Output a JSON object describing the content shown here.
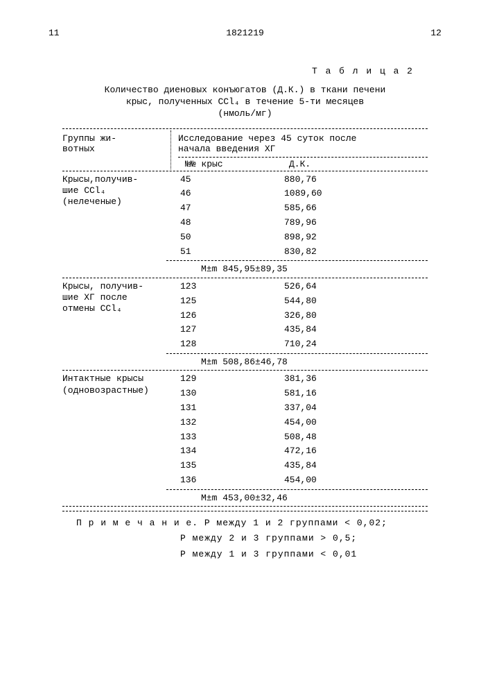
{
  "page_left": "11",
  "doc_number": "1821219",
  "page_right": "12",
  "table_label": "Т а б л и ц а 2",
  "caption_l1": "Количество диеновых конъюгатов (Д.К.) в ткани печени",
  "caption_l2": "крыс, полученных CCl₄ в течение 5-ти месяцев",
  "caption_l3": "(нмоль/мг)",
  "h_group": "Группы жи-\nвотных",
  "h_study": "Исследование через 45 суток после\nначала введения ХГ",
  "h_rat": "№№ крыс",
  "h_dk": "Д.К.",
  "g1_label": "Крысы,получив-\nшие CCl₄\n(нелеченые)",
  "g1": [
    {
      "n": "45",
      "v": "880,76"
    },
    {
      "n": "46",
      "v": "1089,60"
    },
    {
      "n": "47",
      "v": "585,66"
    },
    {
      "n": "48",
      "v": "789,96"
    },
    {
      "n": "50",
      "v": "898,92"
    },
    {
      "n": "51",
      "v": "830,82"
    }
  ],
  "g1_m": "M±m 845,95±89,35",
  "g2_label": "Крысы, получив-\nшие ХГ после\nотмены CCl₄",
  "g2": [
    {
      "n": "123",
      "v": "526,64"
    },
    {
      "n": "125",
      "v": "544,80"
    },
    {
      "n": "126",
      "v": "326,80"
    },
    {
      "n": "127",
      "v": "435,84"
    },
    {
      "n": "128",
      "v": "710,24"
    }
  ],
  "g2_m": "M±m 508,86±46,78",
  "g3_label": "Интактные крысы\n(одновозрастные)",
  "g3": [
    {
      "n": "129",
      "v": "381,36"
    },
    {
      "n": "130",
      "v": "581,16"
    },
    {
      "n": "131",
      "v": "337,04"
    },
    {
      "n": "132",
      "v": "454,00"
    },
    {
      "n": "133",
      "v": "508,48"
    },
    {
      "n": "134",
      "v": "472,16"
    },
    {
      "n": "135",
      "v": "435,84"
    },
    {
      "n": "136",
      "v": "454,00"
    }
  ],
  "g3_m": "M±m 453,00±32,46",
  "note1": "П р и м е ч а н и е. P между 1 и 2 группами < 0,02;",
  "note2": "P между 2 и 3 группами > 0,5;",
  "note3": "P между 1 и 3 группами < 0,01"
}
